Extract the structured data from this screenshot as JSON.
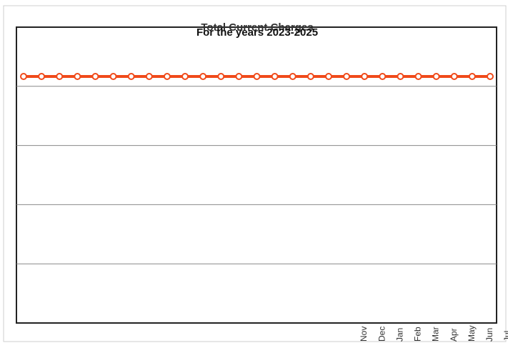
{
  "chart_data": {
    "type": "line",
    "title": "Total Current Charges",
    "subtitle": "For the years 2023-2025",
    "xlabel": "",
    "ylabel": "",
    "visible_tick_labels": [
      "Nov",
      "Dec",
      "Jan",
      "Feb",
      "Mar",
      "Apr",
      "May",
      "Jun",
      "Jul"
    ],
    "series": [
      {
        "values": [
          1,
          1,
          1,
          1,
          1,
          1,
          1,
          1,
          1,
          1,
          1,
          1,
          1,
          1,
          1,
          1,
          1,
          1,
          1,
          1,
          1,
          1,
          1,
          1,
          1,
          1,
          1
        ],
        "color": "#f04a1a"
      }
    ],
    "ylim": [
      0,
      1.2
    ],
    "grid": true,
    "legend": "none"
  }
}
